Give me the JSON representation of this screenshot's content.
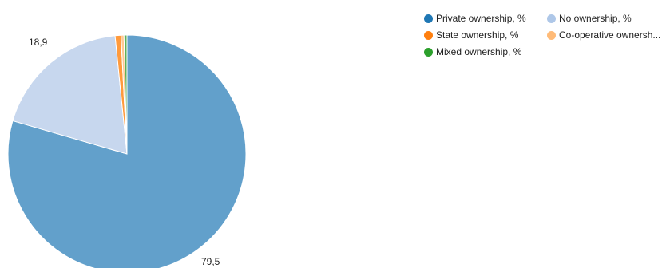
{
  "chart_data": {
    "type": "pie",
    "categories": [
      "Private ownership, %",
      "No ownership, %",
      "State ownership, %",
      "Co-operative owners...",
      "Mixed ownership, %"
    ],
    "values": [
      79.5,
      18.9,
      0.8,
      0.4,
      0.4
    ],
    "colors": [
      "#62a0cb",
      "#c7d7ee",
      "#ff9a3c",
      "#ffc893",
      "#5fb05a"
    ],
    "legend_colors": [
      "#1f77b4",
      "#aec7e8",
      "#ff7f0e",
      "#ffbb78",
      "#2ca02c"
    ],
    "data_labels": [
      "79,5",
      "18,9",
      "",
      "",
      ""
    ],
    "start_angle_deg": 0,
    "direction": "clockwise",
    "legend_position": "top-right"
  },
  "legend": {
    "items": [
      {
        "label": "Private ownership, %",
        "color": "#1f77b4"
      },
      {
        "label": "No ownership, %",
        "color": "#aec7e8"
      },
      {
        "label": "State ownership, %",
        "color": "#ff7f0e"
      },
      {
        "label": "Co-operative ownersh...",
        "color": "#ffbb78"
      },
      {
        "label": "Mixed ownership, %",
        "color": "#2ca02c"
      }
    ]
  }
}
